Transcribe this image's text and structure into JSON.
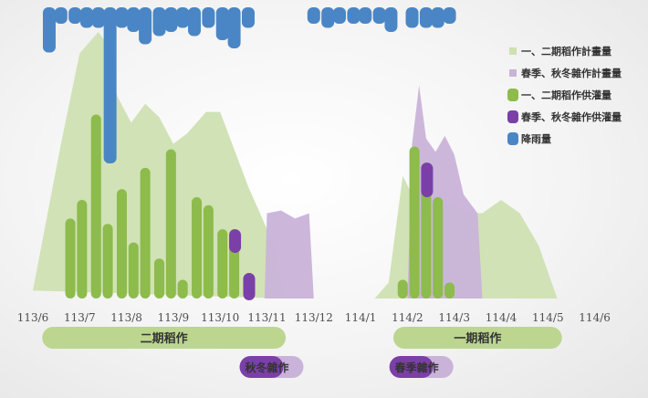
{
  "chart_data": {
    "type": "bar",
    "title": "",
    "xlabel": "",
    "ylabel": "",
    "x_ticks": [
      "113/6",
      "113/7",
      "113/8",
      "113/9",
      "113/10",
      "113/11",
      "113/12",
      "114/1",
      "114/2",
      "114/3",
      "114/4",
      "114/5",
      "114/6"
    ],
    "colors": {
      "plan_12": "#cfe0b2",
      "plan_spring_autumn": "#c9b3d9",
      "supply_12": "#8dbb4c",
      "supply_spring_autumn": "#7b3fa8",
      "rainfall": "#4a86c5",
      "band": "#bcd68f"
    },
    "legend": [
      {
        "key": "plan_12",
        "label": "一、二期稻作計畫量",
        "marker": "square-small"
      },
      {
        "key": "plan_spring_autumn",
        "label": "春季、秋冬雜作計畫量",
        "marker": "square-small"
      },
      {
        "key": "supply_12",
        "label": "一、二期稻作供灌量",
        "marker": "rounded"
      },
      {
        "key": "supply_spring_autumn",
        "label": "春季、秋冬雜作供灌量",
        "marker": "rounded"
      },
      {
        "key": "rainfall",
        "label": "降雨量",
        "marker": "rounded"
      }
    ],
    "plan_12_area": [
      [
        6.0,
        3
      ],
      [
        6.6,
        58
      ],
      [
        7.0,
        92
      ],
      [
        7.4,
        100
      ],
      [
        7.6,
        95
      ],
      [
        7.8,
        76
      ],
      [
        8.1,
        66
      ],
      [
        8.4,
        73
      ],
      [
        8.7,
        68
      ],
      [
        9.0,
        58
      ],
      [
        9.3,
        62
      ],
      [
        9.7,
        70
      ],
      [
        10.0,
        70
      ],
      [
        10.3,
        56
      ],
      [
        10.6,
        42
      ],
      [
        10.9,
        30
      ],
      [
        11.2,
        18
      ],
      [
        11.35,
        0
      ],
      [
        13.3,
        0
      ],
      [
        13.6,
        6
      ],
      [
        13.9,
        46
      ],
      [
        14.3,
        32
      ],
      [
        14.6,
        33
      ],
      [
        15.0,
        36
      ],
      [
        15.3,
        32
      ],
      [
        15.6,
        32
      ],
      [
        16.0,
        37
      ],
      [
        16.4,
        32
      ],
      [
        16.8,
        20
      ],
      [
        17.2,
        0
      ]
    ],
    "plan_12_segments": [
      [
        0,
        17
      ],
      [
        18,
        29
      ]
    ],
    "plan_spring_autumn_area": [
      [
        10.95,
        0
      ],
      [
        11.0,
        32
      ],
      [
        11.3,
        33
      ],
      [
        11.6,
        30
      ],
      [
        11.9,
        32
      ],
      [
        12.0,
        0
      ],
      [
        14.0,
        0
      ],
      [
        14.1,
        58
      ],
      [
        14.25,
        80
      ],
      [
        14.4,
        60
      ],
      [
        14.6,
        55
      ],
      [
        14.8,
        61
      ],
      [
        15.0,
        54
      ],
      [
        15.2,
        39
      ],
      [
        15.5,
        32
      ],
      [
        15.6,
        0
      ]
    ],
    "plan_spa_segments": [
      [
        0,
        5
      ],
      [
        6,
        15
      ]
    ],
    "series": [
      {
        "name": "一、二期稻作供灌量",
        "key": "supply_12",
        "bars": [
          {
            "x": 6.8,
            "value": 30
          },
          {
            "x": 7.05,
            "value": 37
          },
          {
            "x": 7.35,
            "value": 69
          },
          {
            "x": 7.6,
            "value": 28
          },
          {
            "x": 7.9,
            "value": 41
          },
          {
            "x": 8.15,
            "value": 21
          },
          {
            "x": 8.4,
            "value": 49
          },
          {
            "x": 8.7,
            "value": 15
          },
          {
            "x": 8.95,
            "value": 56
          },
          {
            "x": 9.2,
            "value": 7
          },
          {
            "x": 9.5,
            "value": 38
          },
          {
            "x": 9.75,
            "value": 35
          },
          {
            "x": 10.05,
            "value": 26
          },
          {
            "x": 10.3,
            "value": 26
          },
          {
            "x": 10.6,
            "value": 0
          },
          {
            "x": 13.9,
            "value": 7
          },
          {
            "x": 14.15,
            "value": 57
          },
          {
            "x": 14.4,
            "value": 51
          },
          {
            "x": 14.65,
            "value": 38
          },
          {
            "x": 14.9,
            "value": 6
          }
        ]
      },
      {
        "name": "春季、秋冬雜作供灌量",
        "key": "supply_spring_autumn",
        "bars": [
          {
            "x": 10.3,
            "value": 4
          },
          {
            "x": 10.6,
            "value": 5
          },
          {
            "x": 14.4,
            "value": 7
          }
        ]
      },
      {
        "name": "降雨量",
        "key": "rainfall",
        "bars": [
          {
            "x": 6.35,
            "value": 11
          },
          {
            "x": 6.6,
            "value": 4
          },
          {
            "x": 6.9,
            "value": 4
          },
          {
            "x": 7.15,
            "value": 5
          },
          {
            "x": 7.4,
            "value": 5
          },
          {
            "x": 7.65,
            "value": 38
          },
          {
            "x": 7.9,
            "value": 5
          },
          {
            "x": 8.15,
            "value": 6
          },
          {
            "x": 8.4,
            "value": 9
          },
          {
            "x": 8.7,
            "value": 7
          },
          {
            "x": 8.95,
            "value": 6
          },
          {
            "x": 9.2,
            "value": 5
          },
          {
            "x": 9.45,
            "value": 7
          },
          {
            "x": 9.75,
            "value": 5
          },
          {
            "x": 10.05,
            "value": 8
          },
          {
            "x": 10.3,
            "value": 10
          },
          {
            "x": 10.6,
            "value": 5
          },
          {
            "x": 12.0,
            "value": 4
          },
          {
            "x": 12.3,
            "value": 5
          },
          {
            "x": 12.55,
            "value": 4
          },
          {
            "x": 12.85,
            "value": 4
          },
          {
            "x": 13.1,
            "value": 4
          },
          {
            "x": 13.4,
            "value": 4
          },
          {
            "x": 13.65,
            "value": 6
          },
          {
            "x": 14.1,
            "value": 5
          },
          {
            "x": 14.4,
            "value": 5
          },
          {
            "x": 14.65,
            "value": 5
          },
          {
            "x": 14.9,
            "value": 4
          }
        ]
      }
    ],
    "bands": [
      {
        "label": "二期稻作",
        "x_start": 6.2,
        "x_end": 11.4
      },
      {
        "label": "一期稻作",
        "x_start": 13.7,
        "x_end": 17.3
      }
    ],
    "pills": [
      {
        "label": "秋冬雜作",
        "x": 11.0
      },
      {
        "label": "春季雜作",
        "x": 14.2
      }
    ]
  }
}
